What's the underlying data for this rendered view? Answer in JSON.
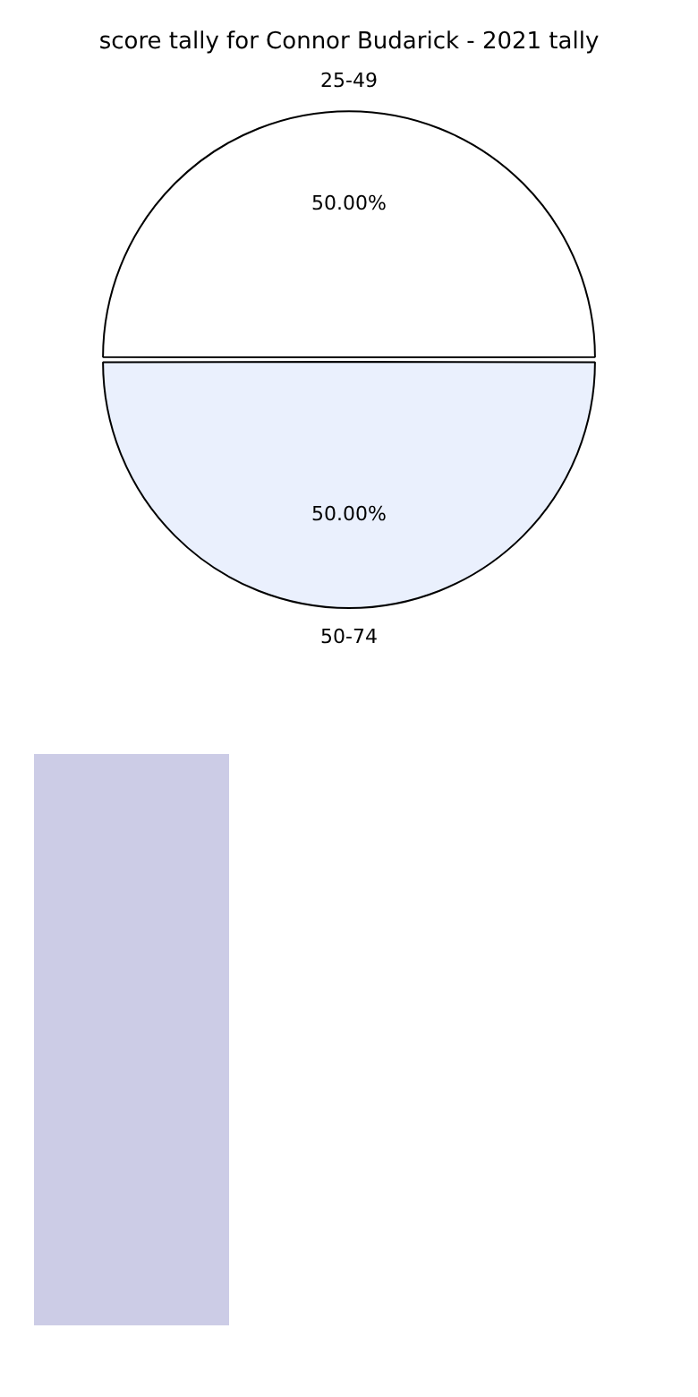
{
  "chart_data": {
    "type": "pie",
    "title": "score tally for Connor Budarick - 2021 tally",
    "categories": [
      "25-49",
      "50-74"
    ],
    "values": [
      50,
      50
    ],
    "colors": [
      "#ffffff",
      "#eaf0fd"
    ],
    "value_labels": [
      "50.00%",
      "50.00%"
    ],
    "legend": false
  }
}
